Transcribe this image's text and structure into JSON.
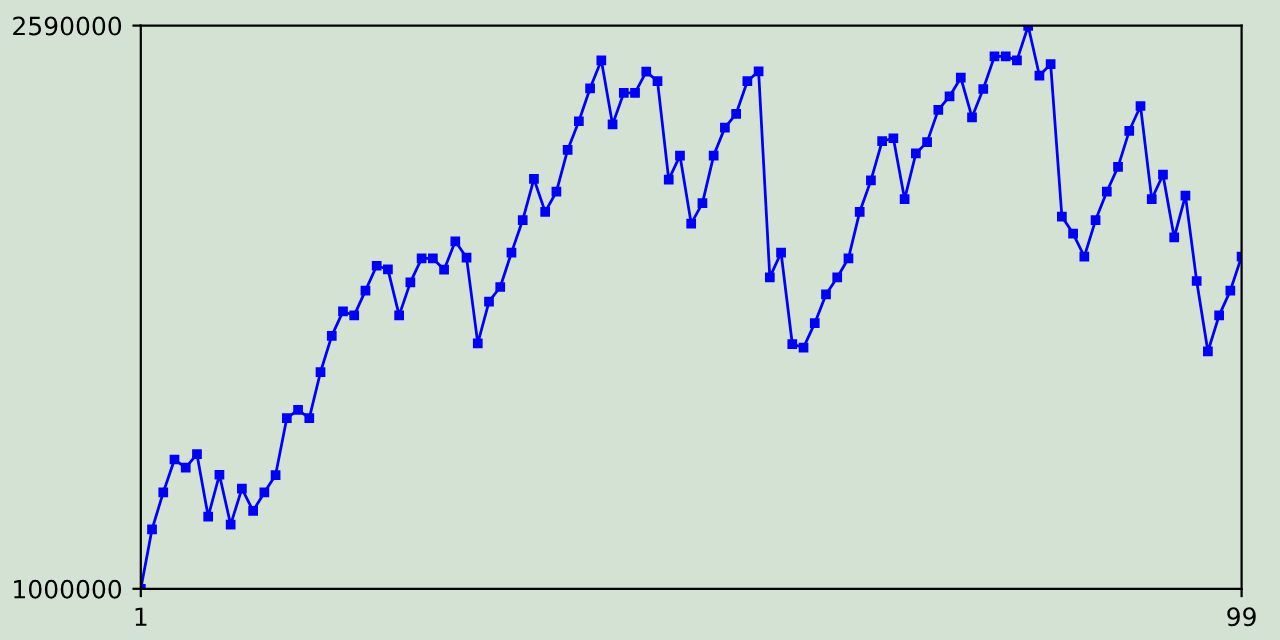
{
  "chart_data": {
    "type": "line",
    "marker": "square",
    "line_style": "solid",
    "grid": false,
    "legend": false,
    "xlim": [
      1,
      99
    ],
    "xticks": [
      1,
      99
    ],
    "ylim": [
      1000000,
      2590000
    ],
    "yticks": [
      1000000,
      2590000
    ],
    "x": [
      1,
      2,
      3,
      4,
      5,
      6,
      7,
      8,
      9,
      10,
      11,
      12,
      13,
      14,
      15,
      16,
      17,
      18,
      19,
      20,
      21,
      22,
      23,
      24,
      25,
      26,
      27,
      28,
      29,
      30,
      31,
      32,
      33,
      34,
      35,
      36,
      37,
      38,
      39,
      40,
      41,
      42,
      43,
      44,
      45,
      46,
      47,
      48,
      49,
      50,
      51,
      52,
      53,
      54,
      55,
      56,
      57,
      58,
      59,
      60,
      61,
      62,
      63,
      64,
      65,
      66,
      67,
      68,
      69,
      70,
      71,
      72,
      73,
      74,
      75,
      76,
      77,
      78,
      79,
      80,
      81,
      82,
      83,
      84,
      85,
      86,
      87,
      88,
      89,
      90,
      91,
      92,
      93,
      94,
      95,
      96,
      97,
      98,
      99
    ],
    "series": [
      {
        "color": "#0000ff",
        "values": [
          1000000,
          1168000,
          1272000,
          1365000,
          1342000,
          1380000,
          1204000,
          1322000,
          1181000,
          1283000,
          1220000,
          1272000,
          1321000,
          1482000,
          1505000,
          1482000,
          1612000,
          1714000,
          1783000,
          1772000,
          1842000,
          1912000,
          1902000,
          1772000,
          1865000,
          1933000,
          1933000,
          1901000,
          1981000,
          1935000,
          1693000,
          1811000,
          1852000,
          1949000,
          2041000,
          2157000,
          2064000,
          2121000,
          2239000,
          2320000,
          2413000,
          2492000,
          2311000,
          2400000,
          2400000,
          2460000,
          2433000,
          2155000,
          2223000,
          2031000,
          2089000,
          2223000,
          2302000,
          2341000,
          2433000,
          2461000,
          1879000,
          1949000,
          1691000,
          1681000,
          1750000,
          1831000,
          1879000,
          1933000,
          2064000,
          2153000,
          2264000,
          2272000,
          2100000,
          2229000,
          2261000,
          2352000,
          2390000,
          2443000,
          2331000,
          2411000,
          2503000,
          2503000,
          2492000,
          2589000,
          2449000,
          2481000,
          2051000,
          2003000,
          1938000,
          2041000,
          2121000,
          2191000,
          2293000,
          2363000,
          2100000,
          2169000,
          1992000,
          2110000,
          1869000,
          1670000,
          1772000,
          1842000,
          1938000
        ]
      }
    ]
  }
}
